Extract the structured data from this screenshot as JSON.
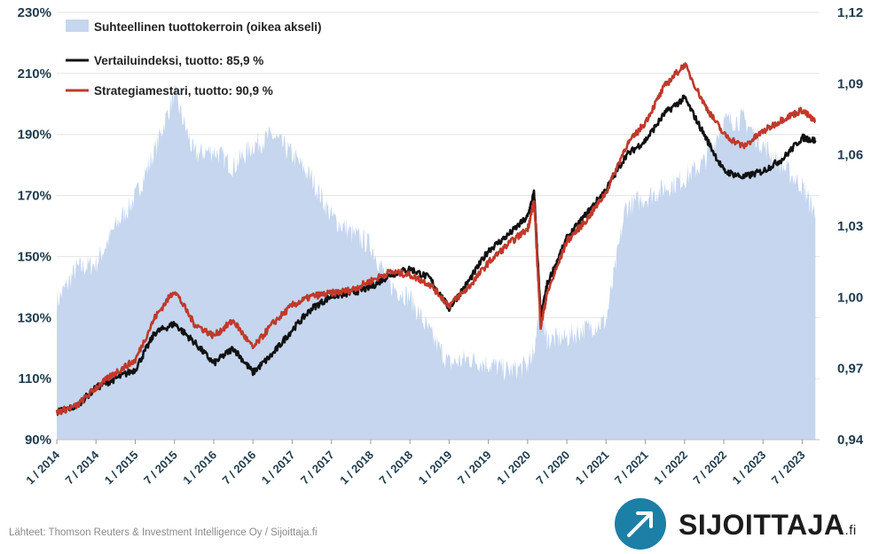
{
  "chart_data": {
    "type": "line",
    "x_ticks": [
      "1 / 2014",
      "7 / 2014",
      "1 / 2015",
      "7 / 2015",
      "1 / 2016",
      "7 / 2016",
      "1 / 2017",
      "7 / 2017",
      "1 / 2018",
      "7 / 2018",
      "1 / 2019",
      "7 / 2019",
      "1 / 2020",
      "7 / 2020",
      "1 / 2021",
      "7 / 2021",
      "1 / 2022",
      "7 / 2022",
      "1 / 2023",
      "7 / 2023"
    ],
    "y_left_ticks": [
      "90%",
      "110%",
      "130%",
      "150%",
      "170%",
      "190%",
      "210%",
      "230%"
    ],
    "y_left_lim": [
      90,
      230
    ],
    "y_right_ticks": [
      "0,94",
      "0,97",
      "1,00",
      "1,03",
      "1,06",
      "1,09",
      "1,12"
    ],
    "y_right_lim": [
      0.94,
      1.12
    ],
    "grid": "horizontal",
    "legend_position": "top-left",
    "x_dates": [
      "2014-01",
      "2014-04",
      "2014-07",
      "2014-10",
      "2015-01",
      "2015-04",
      "2015-07",
      "2015-10",
      "2016-01",
      "2016-04",
      "2016-07",
      "2016-10",
      "2017-01",
      "2017-04",
      "2017-07",
      "2017-10",
      "2018-01",
      "2018-04",
      "2018-07",
      "2018-10",
      "2019-01",
      "2019-04",
      "2019-07",
      "2019-10",
      "2020-01",
      "2020-02",
      "2020-03",
      "2020-04",
      "2020-07",
      "2020-10",
      "2021-01",
      "2021-04",
      "2021-07",
      "2021-10",
      "2022-01",
      "2022-04",
      "2022-07",
      "2022-10",
      "2023-01",
      "2023-04",
      "2023-07",
      "2023-09"
    ],
    "series": [
      {
        "name": "Suhteellinen tuottokerroin (oikea akseli)",
        "axis": "right",
        "type": "area",
        "color": "#c5d6ee",
        "values": [
          0.998,
          1.012,
          1.014,
          1.03,
          1.042,
          1.062,
          1.086,
          1.06,
          1.062,
          1.055,
          1.064,
          1.068,
          1.06,
          1.05,
          1.034,
          1.027,
          1.022,
          1.005,
          1.0,
          0.985,
          0.972,
          0.974,
          0.972,
          0.969,
          0.971,
          0.978,
          0.996,
          0.982,
          0.983,
          0.987,
          0.99,
          1.038,
          1.042,
          1.046,
          1.05,
          1.057,
          1.074,
          1.075,
          1.064,
          1.055,
          1.047,
          1.035
        ]
      },
      {
        "name": "Vertailuindeksi, tuotto: 85,9 %",
        "axis": "left",
        "type": "line",
        "color": "#111111",
        "values": [
          99,
          101,
          107,
          110,
          113,
          125,
          128,
          122,
          115,
          120,
          112,
          118,
          126,
          133,
          137,
          138,
          140,
          144,
          146,
          143,
          133,
          142,
          152,
          157,
          163,
          171,
          130,
          141,
          156,
          164,
          172,
          183,
          188,
          197,
          202,
          190,
          178,
          176,
          178,
          182,
          189,
          188
        ]
      },
      {
        "name": "Strategiamestari, tuotto: 90,9 %",
        "axis": "left",
        "type": "line",
        "color": "#c0392b",
        "values": [
          99,
          101,
          107,
          112,
          116,
          130,
          139,
          128,
          124,
          129,
          120,
          128,
          134,
          137,
          138,
          139,
          142,
          145,
          144,
          141,
          134,
          140,
          148,
          154,
          159,
          168,
          127,
          138,
          155,
          162,
          171,
          186,
          194,
          206,
          213,
          200,
          190,
          186,
          191,
          195,
          198,
          194
        ]
      }
    ]
  },
  "source_text": "Lähteet: Thomson Reuters & Investment Intelligence Oy / Sijoittaja.fi",
  "logo": {
    "name": "SIJOITTAJA",
    "suffix": ".fi",
    "color": "#1c7fa6"
  }
}
